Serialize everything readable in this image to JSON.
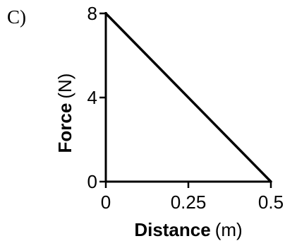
{
  "panel_label": "C)",
  "chart_data": {
    "type": "line",
    "x": [
      0,
      0.5
    ],
    "y": [
      8,
      0
    ],
    "xlim": [
      0,
      0.5
    ],
    "ylim": [
      0,
      8
    ],
    "xticks": [
      "0",
      "0.25",
      "0.5"
    ],
    "yticks": [
      "0",
      "4",
      "8"
    ],
    "xlabel_bold": "Distance",
    "xlabel_unit": "(m)",
    "ylabel_bold": "Force",
    "ylabel_unit": "(N)",
    "grid": false,
    "legend": "none",
    "line_color": "#000000"
  }
}
